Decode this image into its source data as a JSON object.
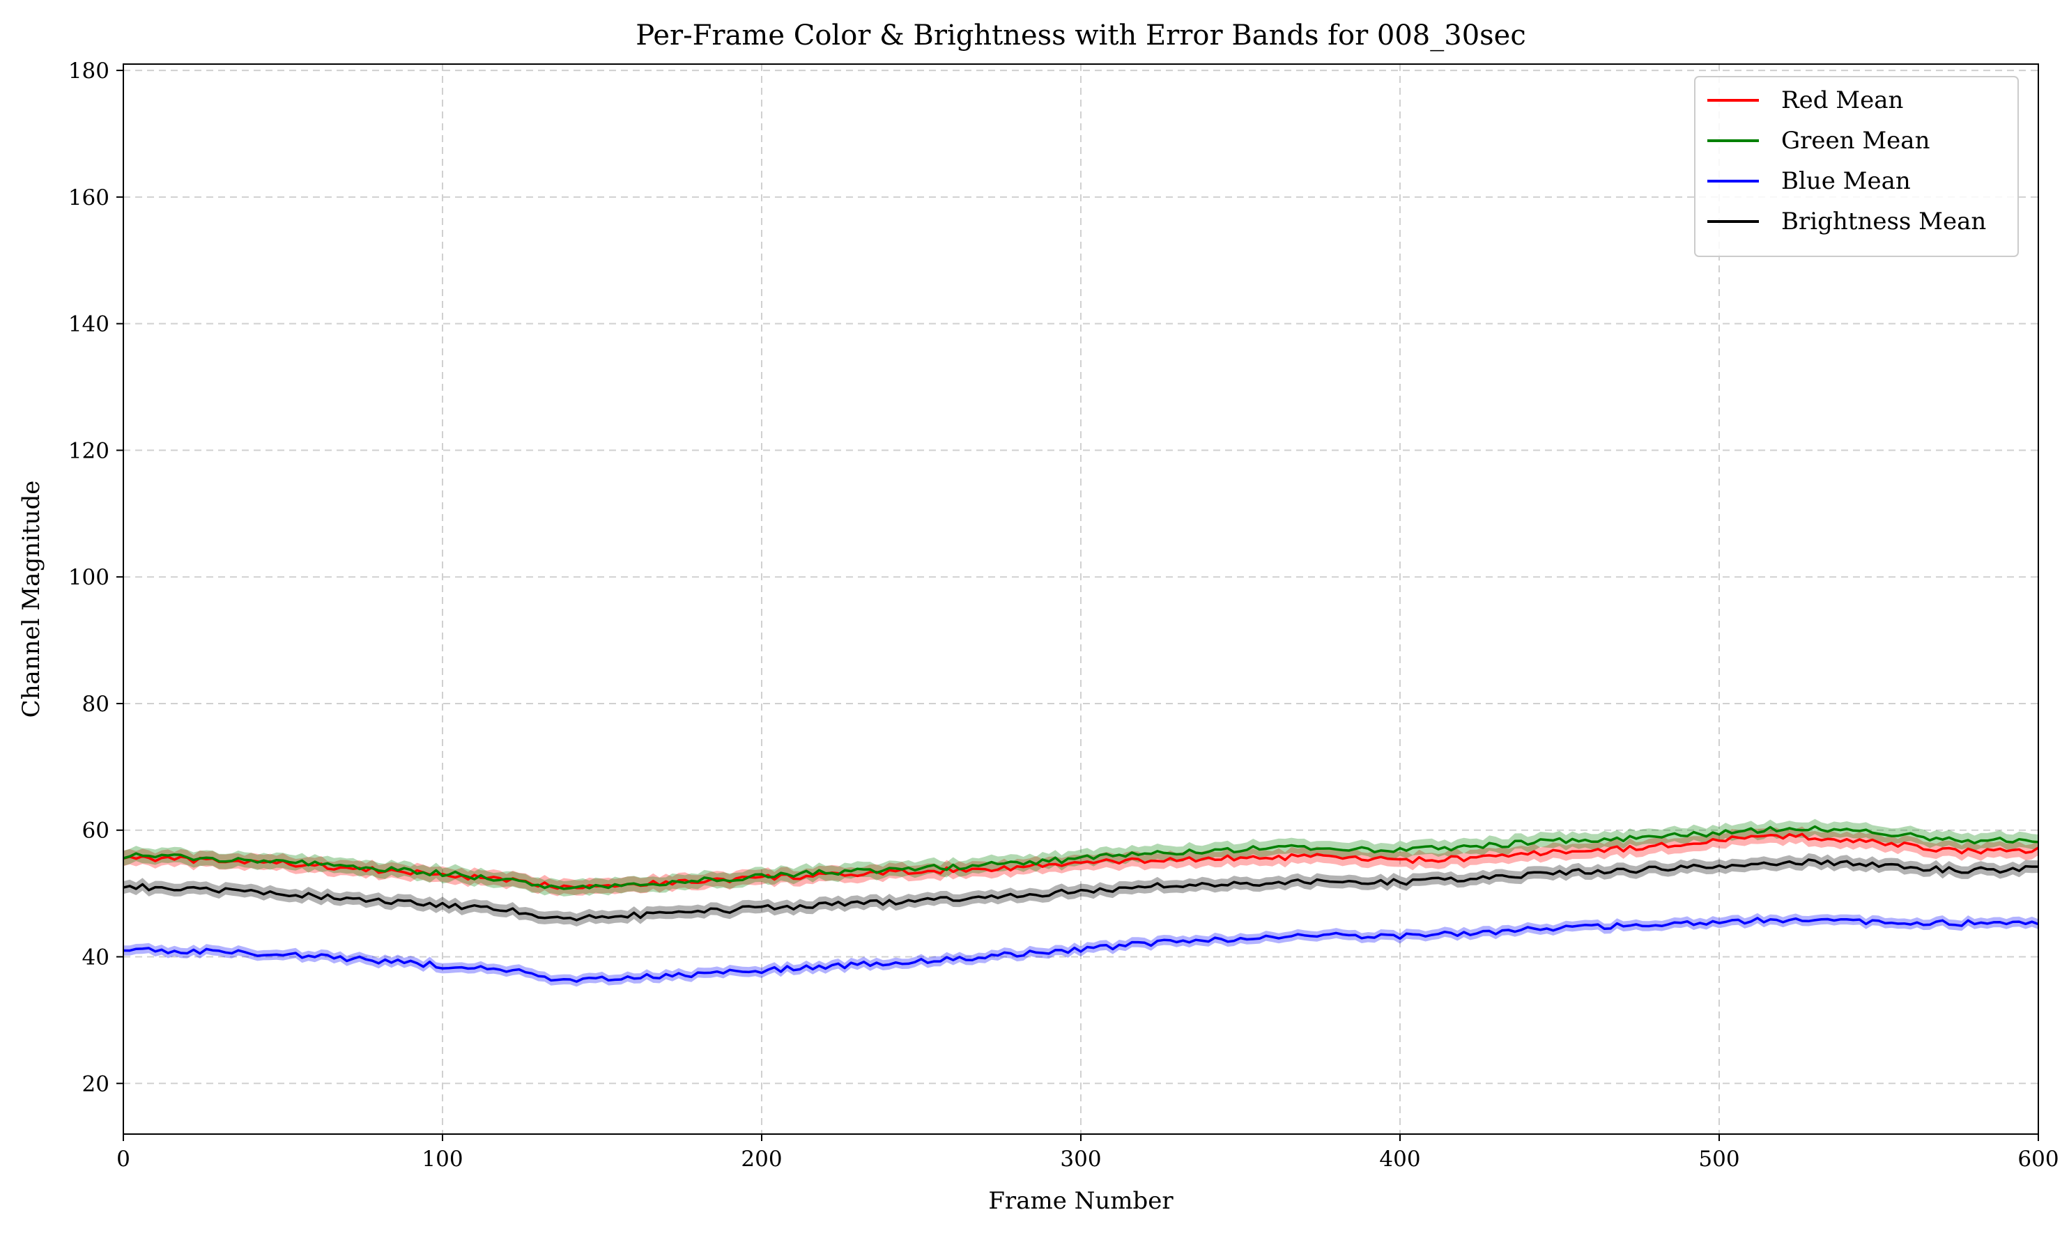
{
  "chart_data": {
    "type": "line",
    "title": "Per-Frame Color & Brightness with Error Bands for 008_30sec",
    "xlabel": "Frame Number",
    "ylabel": "Channel Magnitude",
    "xlim": [
      0,
      600
    ],
    "ylim": [
      12,
      181
    ],
    "xticks": [
      0,
      100,
      200,
      300,
      400,
      500,
      600
    ],
    "yticks": [
      20,
      40,
      60,
      80,
      100,
      120,
      140,
      160,
      180
    ],
    "xtick_labels": [
      "0",
      "100",
      "200",
      "300",
      "400",
      "500",
      "600"
    ],
    "ytick_labels": [
      "20",
      "40",
      "60",
      "80",
      "100",
      "120",
      "140",
      "160",
      "180"
    ],
    "grid": true,
    "legend_position": "top-right",
    "x": [
      0,
      25,
      50,
      75,
      100,
      125,
      135,
      150,
      175,
      200,
      225,
      250,
      275,
      300,
      325,
      350,
      375,
      400,
      425,
      450,
      475,
      500,
      525,
      550,
      575,
      600
    ],
    "series": [
      {
        "name": "Red Mean",
        "color": "#ff0000",
        "values": [
          55.8,
          55.2,
          54.8,
          53.8,
          53.0,
          51.8,
          51.2,
          51.3,
          51.8,
          52.5,
          52.9,
          53.5,
          54.0,
          54.8,
          55.3,
          55.6,
          55.8,
          55.2,
          55.6,
          56.6,
          57.2,
          58.5,
          59.1,
          58.0,
          56.7,
          56.9
        ],
        "error": 1.2
      },
      {
        "name": "Green Mean",
        "color": "#008000",
        "values": [
          56.0,
          55.6,
          55.1,
          54.0,
          53.2,
          51.9,
          51.0,
          51.1,
          51.8,
          52.8,
          53.4,
          54.0,
          54.6,
          55.5,
          56.5,
          57.0,
          57.3,
          56.8,
          57.5,
          58.3,
          58.8,
          59.5,
          60.4,
          59.7,
          58.3,
          58.4
        ],
        "error": 1.2
      },
      {
        "name": "Blue Mean",
        "color": "#0000ff",
        "values": [
          41.2,
          40.8,
          40.4,
          39.6,
          38.6,
          37.6,
          36.1,
          36.4,
          37.1,
          37.9,
          38.6,
          39.4,
          40.2,
          41.1,
          42.3,
          42.8,
          43.4,
          43.3,
          43.7,
          44.6,
          45.0,
          45.6,
          45.8,
          45.5,
          45.3,
          45.6
        ],
        "error": 0.8
      },
      {
        "name": "Brightness Mean",
        "color": "#000000",
        "values": [
          51.2,
          50.5,
          50.1,
          49.0,
          48.2,
          47.1,
          46.1,
          46.3,
          46.9,
          47.7,
          48.3,
          48.9,
          49.6,
          50.3,
          51.2,
          51.6,
          52.0,
          51.8,
          52.4,
          53.3,
          53.7,
          54.4,
          55.0,
          54.5,
          53.6,
          53.9
        ],
        "error": 1.0
      }
    ]
  }
}
